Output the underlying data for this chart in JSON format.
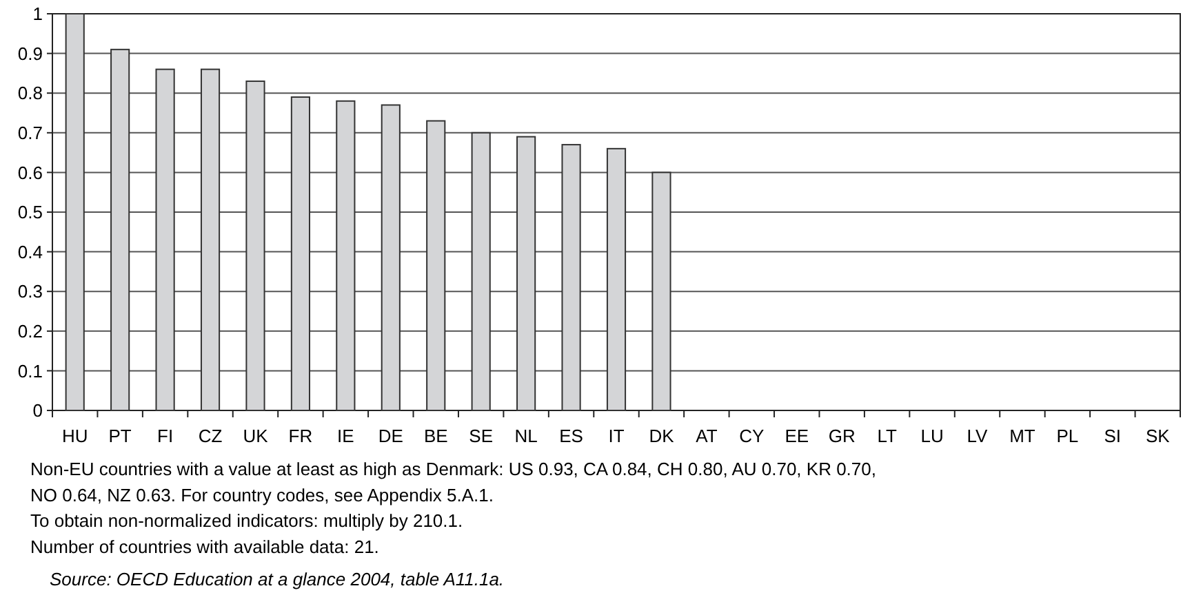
{
  "chart_data": {
    "type": "bar",
    "categories": [
      "HU",
      "PT",
      "FI",
      "CZ",
      "UK",
      "FR",
      "IE",
      "DE",
      "BE",
      "SE",
      "NL",
      "ES",
      "IT",
      "DK",
      "AT",
      "CY",
      "EE",
      "GR",
      "LT",
      "LU",
      "LV",
      "MT",
      "PL",
      "SI",
      "SK"
    ],
    "values": [
      1.0,
      0.91,
      0.86,
      0.86,
      0.83,
      0.79,
      0.78,
      0.77,
      0.73,
      0.7,
      0.69,
      0.67,
      0.66,
      0.6,
      null,
      null,
      null,
      null,
      null,
      null,
      null,
      null,
      null,
      null,
      null
    ],
    "color": "#d4d5d7",
    "ylim": [
      0,
      1
    ],
    "yticks": [
      0,
      0.1,
      0.2,
      0.3,
      0.4,
      0.5,
      0.6,
      0.7,
      0.8,
      0.9,
      1
    ],
    "grid": "y",
    "legend": false,
    "annotations": [
      "Non-EU countries with a value at least as high as Denmark: US 0.93, CA 0.84, CH 0.80, AU 0.70, KR 0.70,",
      "NO 0.64, NZ 0.63. For country codes, see Appendix 5.A.1.",
      "To obtain non-normalized indicators: multiply by 210.1.",
      "Number of countries with available data: 21.",
      "Source: OECD Education at a glance 2004, table A11.1a."
    ]
  }
}
